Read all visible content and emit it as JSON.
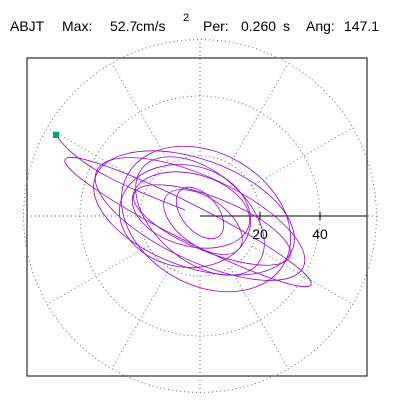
{
  "header": {
    "station": "ABJT",
    "max_label": "Max:",
    "max_value": "52.7",
    "max_unit": "cm/s",
    "max_unit_exponent": "2",
    "period_label": "Per:",
    "period_value": "0.260",
    "period_unit": "s",
    "angle_label": "Ang:",
    "angle_value": "147.1"
  },
  "chart_data": {
    "type": "polar-hodogram",
    "x_ticks": [
      "20",
      "40"
    ],
    "radial_grid": [
      20,
      40
    ],
    "angular_grid_step_deg": 30,
    "grid": true,
    "range": [
      -60,
      60
    ],
    "trace_color": "#9400d3",
    "marker_color": "#00a070",
    "start_point": {
      "x": -48,
      "y": 27
    },
    "max_angle_deg": 147.1,
    "max_value": 52.7,
    "ellipses": [
      {
        "cx": -4,
        "cy": -2,
        "a": 46,
        "b": 6,
        "angle": 153
      },
      {
        "cx": 0,
        "cy": -1,
        "a": 38,
        "b": 14,
        "angle": 155
      },
      {
        "cx": -2,
        "cy": 1,
        "a": 35,
        "b": 18,
        "angle": 160
      },
      {
        "cx": 2,
        "cy": -1,
        "a": 30,
        "b": 22,
        "angle": 150
      },
      {
        "cx": 0,
        "cy": 0,
        "a": 25,
        "b": 15,
        "angle": 140
      },
      {
        "cx": -3,
        "cy": 2,
        "a": 20,
        "b": 12,
        "angle": 165
      },
      {
        "cx": 1,
        "cy": -2,
        "a": 15,
        "b": 8,
        "angle": 145
      },
      {
        "cx": 0,
        "cy": 1,
        "a": 10,
        "b": 6,
        "angle": 130
      },
      {
        "cx": 4,
        "cy": -3,
        "a": 28,
        "b": 9,
        "angle": 158
      },
      {
        "cx": -5,
        "cy": 0,
        "a": 22,
        "b": 17,
        "angle": 170
      }
    ]
  }
}
